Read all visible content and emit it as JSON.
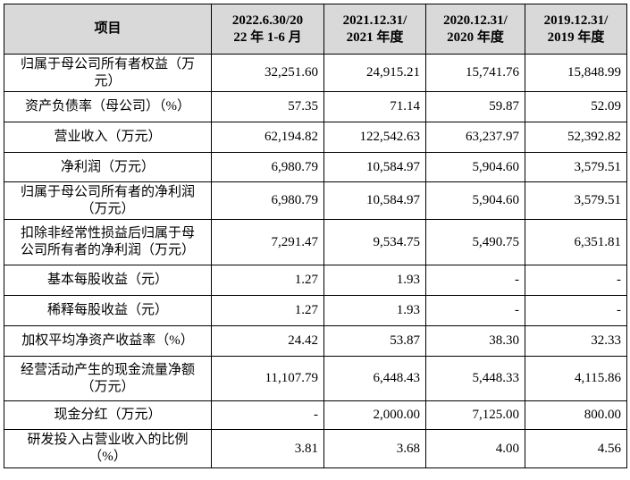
{
  "table": {
    "header": [
      [
        "项目"
      ],
      [
        "2022.6.30/20",
        "22 年 1-6 月"
      ],
      [
        "2021.12.31/",
        "2021 年度"
      ],
      [
        "2020.12.31/",
        "2020 年度"
      ],
      [
        "2019.12.31/",
        "2019 年度"
      ]
    ],
    "rows": [
      {
        "label": [
          "归属于母公司所有者权益（万",
          "元）"
        ],
        "values": [
          "32,251.60",
          "24,915.21",
          "15,741.76",
          "15,848.99"
        ]
      },
      {
        "label": [
          "资产负债率（母公司）（%）"
        ],
        "values": [
          "57.35",
          "71.14",
          "59.87",
          "52.09"
        ]
      },
      {
        "label": [
          "营业收入（万元）"
        ],
        "values": [
          "62,194.82",
          "122,542.63",
          "63,237.97",
          "52,392.82"
        ]
      },
      {
        "label": [
          "净利润（万元）"
        ],
        "values": [
          "6,980.79",
          "10,584.97",
          "5,904.60",
          "3,579.51"
        ]
      },
      {
        "label": [
          "归属于母公司所有者的净利润",
          "（万元）"
        ],
        "values": [
          "6,980.79",
          "10,584.97",
          "5,904.60",
          "3,579.51"
        ]
      },
      {
        "label": [
          "扣除非经常性损益后归属于母",
          "公司所有者的净利润（万元）"
        ],
        "values": [
          "7,291.47",
          "9,534.75",
          "5,490.75",
          "6,351.81"
        ]
      },
      {
        "label": [
          "基本每股收益（元）"
        ],
        "values": [
          "1.27",
          "1.93",
          "-",
          "-"
        ]
      },
      {
        "label": [
          "稀释每股收益（元）"
        ],
        "values": [
          "1.27",
          "1.93",
          "-",
          "-"
        ]
      },
      {
        "label": [
          "加权平均净资产收益率（%）"
        ],
        "values": [
          "24.42",
          "53.87",
          "38.30",
          "32.33"
        ]
      },
      {
        "label": [
          "经营活动产生的现金流量净额",
          "（万元）"
        ],
        "values": [
          "11,107.79",
          "6,448.43",
          "5,448.33",
          "4,115.86"
        ]
      },
      {
        "label": [
          "现金分红（万元）"
        ],
        "values": [
          "-",
          "2,000.00",
          "7,125.00",
          "800.00"
        ]
      },
      {
        "label": [
          "研发投入占营业收入的比例",
          "（%）"
        ],
        "values": [
          "3.81",
          "3.68",
          "4.00",
          "4.56"
        ]
      }
    ]
  }
}
